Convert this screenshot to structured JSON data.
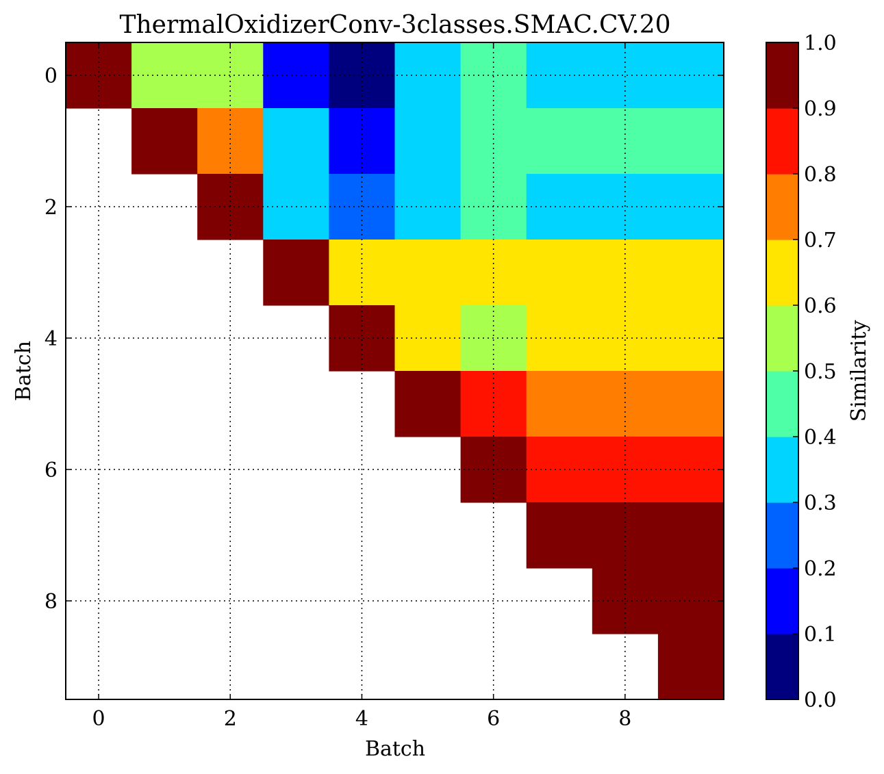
{
  "chart_data": {
    "type": "heatmap",
    "title": "ThermalOxidizerConv-3classes.SMAC.CV.20",
    "xlabel": "Batch",
    "ylabel": "Batch",
    "x_ticks": [
      "0",
      "2",
      "4",
      "6",
      "8"
    ],
    "y_ticks": [
      "0",
      "2",
      "4",
      "6",
      "8"
    ],
    "xlim": [
      -0.5,
      9.5
    ],
    "ylim": [
      9.5,
      -0.5
    ],
    "grid": true,
    "colormap": "jet",
    "colorbar": {
      "label": "Similarity",
      "range": [
        0.0,
        1.0
      ],
      "levels": 10,
      "ticks": [
        "0.0",
        "0.1",
        "0.2",
        "0.3",
        "0.4",
        "0.5",
        "0.6",
        "0.7",
        "0.8",
        "0.9",
        "1.0"
      ],
      "colors": [
        "#00007f",
        "#0000ff",
        "#0062ff",
        "#00d4ff",
        "#4effa8",
        "#a8ff4e",
        "#ffe500",
        "#ff7d00",
        "#ff1300",
        "#7f0000"
      ]
    },
    "rows": [
      [
        0.95,
        0.55,
        0.55,
        0.15,
        0.05,
        0.35,
        0.45,
        0.35,
        0.35,
        0.35
      ],
      [
        null,
        0.95,
        0.75,
        0.35,
        0.15,
        0.35,
        0.45,
        0.45,
        0.45,
        0.45
      ],
      [
        null,
        null,
        0.95,
        0.35,
        0.25,
        0.35,
        0.45,
        0.35,
        0.35,
        0.35
      ],
      [
        null,
        null,
        null,
        0.95,
        0.65,
        0.65,
        0.65,
        0.65,
        0.65,
        0.65
      ],
      [
        null,
        null,
        null,
        null,
        0.95,
        0.65,
        0.55,
        0.65,
        0.65,
        0.65
      ],
      [
        null,
        null,
        null,
        null,
        null,
        0.95,
        0.85,
        0.75,
        0.75,
        0.75
      ],
      [
        null,
        null,
        null,
        null,
        null,
        null,
        0.95,
        0.85,
        0.85,
        0.85
      ],
      [
        null,
        null,
        null,
        null,
        null,
        null,
        null,
        0.95,
        0.95,
        0.95
      ],
      [
        null,
        null,
        null,
        null,
        null,
        null,
        null,
        null,
        0.95,
        0.95
      ],
      [
        null,
        null,
        null,
        null,
        null,
        null,
        null,
        null,
        null,
        0.95
      ]
    ]
  }
}
